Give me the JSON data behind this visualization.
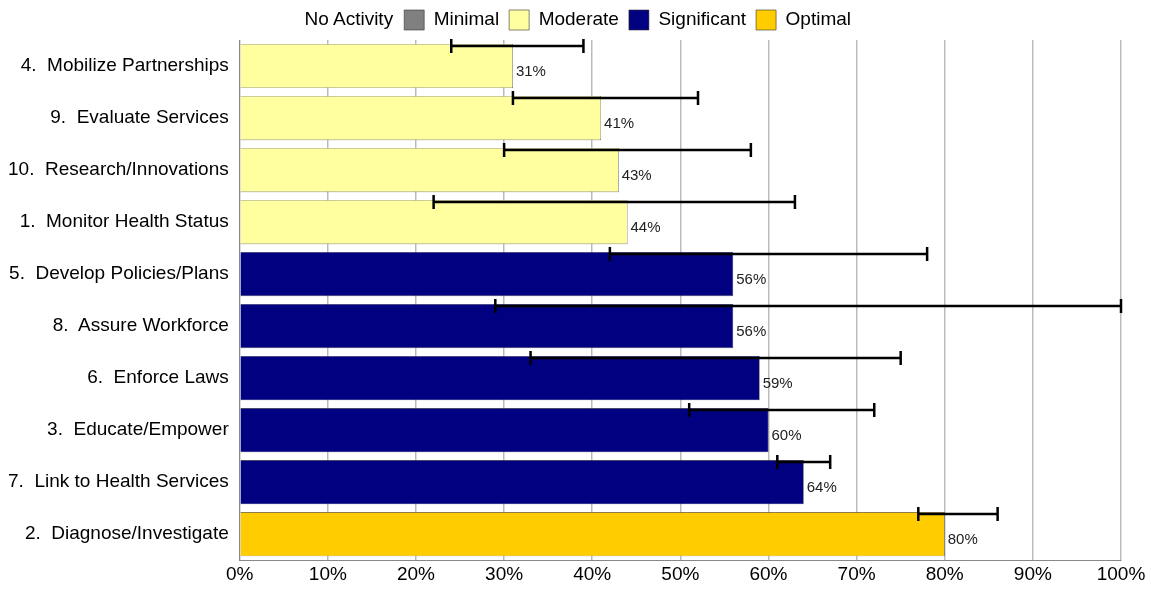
{
  "chart_data": {
    "type": "bar",
    "orientation": "horizontal",
    "stacked": true,
    "categories": [
      "4.  Mobilize Partnerships",
      "9.  Evaluate Services",
      "10.  Research/Innovations",
      "1.  Monitor Health Status",
      "5.  Develop Policies/Plans",
      "8.  Assure Workforce",
      "6.  Enforce Laws",
      "3.  Educate/Empower",
      "7.  Link to Health Services",
      "2.  Diagnose/Investigate"
    ],
    "series": [
      {
        "name": "No Activity",
        "values": [
          null,
          null,
          null,
          null,
          null,
          null,
          null,
          null,
          null,
          null
        ]
      },
      {
        "name": "Minimal",
        "color": "#808080",
        "values": [
          null,
          null,
          null,
          null,
          null,
          null,
          null,
          null,
          null,
          null
        ]
      },
      {
        "name": "Moderate",
        "color": "#ffffa0",
        "values": [
          31,
          41,
          43,
          44,
          null,
          null,
          null,
          null,
          null,
          null
        ],
        "errors": [
          [
            24,
            39
          ],
          [
            31,
            52
          ],
          [
            30,
            58
          ],
          [
            22,
            63
          ],
          null,
          null,
          null,
          null,
          null,
          null
        ],
        "value_labels": [
          "31%",
          "41%",
          "43%",
          "44%",
          null,
          null,
          null,
          null,
          null,
          null
        ]
      },
      {
        "name": "Significant",
        "color": "#000080",
        "values": [
          null,
          null,
          null,
          null,
          56,
          56,
          59,
          60,
          64,
          null
        ],
        "errors": [
          null,
          null,
          null,
          null,
          [
            42,
            78
          ],
          [
            29,
            100
          ],
          [
            33,
            75
          ],
          [
            51,
            72
          ],
          [
            61,
            67
          ],
          null
        ],
        "value_labels": [
          null,
          null,
          null,
          null,
          "56%",
          "56%",
          "59%",
          "60%",
          "64%",
          null
        ]
      },
      {
        "name": "Optimal",
        "color": "#ffcc00",
        "values": [
          null,
          null,
          null,
          null,
          null,
          null,
          null,
          null,
          null,
          80
        ],
        "errors": [
          null,
          null,
          null,
          null,
          null,
          null,
          null,
          null,
          null,
          [
            77,
            86
          ]
        ],
        "value_labels": [
          null,
          null,
          null,
          null,
          null,
          null,
          null,
          null,
          null,
          "80%"
        ]
      }
    ],
    "xlim": [
      0,
      100
    ],
    "xticks": [
      {
        "value": 0,
        "label": "0%"
      },
      {
        "value": 10,
        "label": "10%"
      },
      {
        "value": 20,
        "label": "20%"
      },
      {
        "value": 30,
        "label": "30%"
      },
      {
        "value": 40,
        "label": "40%"
      },
      {
        "value": 50,
        "label": "50%"
      },
      {
        "value": 60,
        "label": "60%"
      },
      {
        "value": 70,
        "label": "70%"
      },
      {
        "value": 80,
        "label": "80%"
      },
      {
        "value": 90,
        "label": "90%"
      },
      {
        "value": 100,
        "label": "100%"
      }
    ],
    "grid": "x",
    "legend": "top"
  }
}
